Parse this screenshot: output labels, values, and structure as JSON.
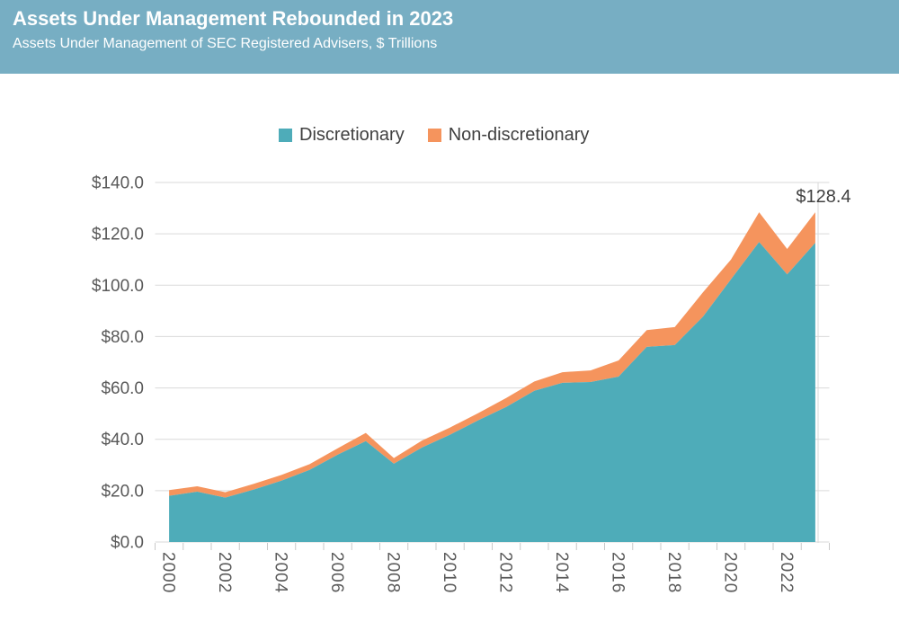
{
  "header": {
    "title": "Assets Under Management Rebounded in 2023",
    "subtitle": "Assets Under Management of SEC Registered Advisers, $ Trillions",
    "bg_color": "#77AEC3"
  },
  "legend": [
    {
      "label": "Discretionary",
      "color": "#4EACB9"
    },
    {
      "label": "Non-discretionary",
      "color": "#F5945D"
    }
  ],
  "colors": {
    "header_bg": "#77AEC3",
    "discretionary": "#4EACB9",
    "non_discretionary": "#F5945D",
    "gridline": "#D9D9D9",
    "tick": "#C9C9C9",
    "axis_text": "#595959",
    "annotation_text": "#404040"
  },
  "chart_data": {
    "type": "area",
    "stacked": true,
    "title": "Assets Under Management Rebounded in 2023",
    "subtitle": "Assets Under Management of SEC Registered Advisers, $ Trillions",
    "xlabel": "",
    "ylabel": "$ Trillions",
    "x": [
      2000,
      2001,
      2002,
      2003,
      2004,
      2005,
      2006,
      2007,
      2008,
      2009,
      2010,
      2011,
      2012,
      2013,
      2014,
      2015,
      2016,
      2017,
      2018,
      2019,
      2020,
      2021,
      2022,
      2023
    ],
    "series": [
      {
        "name": "Discretionary",
        "color": "#4EACB9",
        "values": [
          18.0,
          19.6,
          17.3,
          20.4,
          23.9,
          28.1,
          34.0,
          39.3,
          30.5,
          36.8,
          41.8,
          47.4,
          52.6,
          58.9,
          62.0,
          62.3,
          64.4,
          76.0,
          76.7,
          87.7,
          102.3,
          116.8,
          104.2,
          116.5
        ]
      },
      {
        "name": "Non-discretionary",
        "color": "#F5945D",
        "values": [
          2.2,
          2.1,
          2.1,
          2.2,
          2.2,
          2.2,
          2.5,
          3.2,
          2.2,
          2.7,
          2.8,
          2.8,
          3.5,
          3.6,
          4.1,
          4.5,
          6.3,
          6.5,
          7.0,
          9.5,
          7.7,
          11.6,
          9.9,
          11.9
        ]
      }
    ],
    "totals": [
      20.2,
      21.7,
      19.4,
      22.6,
      26.1,
      30.3,
      36.5,
      42.5,
      32.7,
      39.5,
      44.6,
      50.2,
      56.1,
      62.5,
      66.1,
      66.8,
      70.7,
      82.5,
      83.7,
      97.2,
      110.0,
      128.4,
      114.1,
      128.4
    ],
    "ylim": [
      0,
      140
    ],
    "ytick_step": 20,
    "ytick_labels": [
      "$0.0",
      "$20.0",
      "$40.0",
      "$60.0",
      "$80.0",
      "$100.0",
      "$120.0",
      "$140.0"
    ],
    "xtick_labels": [
      "2000",
      "2002",
      "2004",
      "2006",
      "2008",
      "2010",
      "2012",
      "2014",
      "2016",
      "2018",
      "2020",
      "2022"
    ],
    "grid": true,
    "legend_position": "top-center",
    "annotation": {
      "text": "$128.4",
      "x": 2023,
      "y": 128.4
    }
  }
}
